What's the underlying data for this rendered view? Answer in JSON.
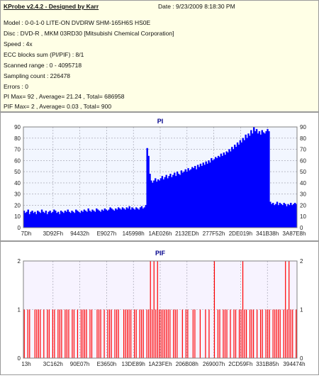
{
  "header": {
    "title": "KProbe v2.4.2 - Designed by Karr",
    "date": "Date : 9/23/2009 8:18:30 PM",
    "lines": [
      "Model : 0-0-1-0 LITE-ON DVDRW SHM-165H6S HS0E",
      "Disc : DVD-R , MKM 03RD30  [Mitsubishi Chemical Corporation]",
      "Speed : 4x",
      "ECC blocks sum (PI/PIF) : 8/1",
      "Scanned range : 0 - 4095718",
      "Sampling count : 226478",
      "Errors : 0",
      "PI Max= 92 , Average= 21.24 , Total= 686958",
      "PIF Max= 2 , Average= 0.03 , Total= 900"
    ]
  },
  "colors": {
    "pi_fill": "#0000ff",
    "pif_bar": "#ff0000",
    "title": "#00008b",
    "infobg": "#ffffe6",
    "plotbg_pi": "#f2f6ff",
    "plotbg_pif": "#f7f3ff"
  },
  "chart_data": [
    {
      "type": "area",
      "title": "PI",
      "xlabel": "",
      "ylabel": "",
      "ylim": [
        0,
        90
      ],
      "yticks": [
        0,
        10,
        20,
        30,
        40,
        50,
        60,
        70,
        80,
        90
      ],
      "xticklabels": [
        "7Dh",
        "3D92Fh",
        "94432h",
        "E9027h",
        "145998h",
        "1AE026h",
        "2132EDh",
        "277F52h",
        "2DE019h",
        "341B38h",
        "3A87E8h"
      ],
      "grid": true,
      "series": [
        {
          "values": [
            15,
            13,
            14,
            16,
            12,
            14,
            15,
            13,
            14,
            12,
            15,
            14,
            13,
            16,
            14,
            13,
            15,
            12,
            14,
            15,
            13,
            14,
            16,
            15,
            13,
            14,
            12,
            15,
            14,
            13,
            15,
            14,
            16,
            14,
            13,
            15,
            14,
            13,
            16,
            15,
            14,
            13,
            15,
            14,
            16,
            15,
            14,
            17,
            15,
            14,
            16,
            15,
            14,
            17,
            16,
            15,
            14,
            16,
            15,
            17,
            16,
            15,
            16,
            18,
            17,
            16,
            15,
            17,
            16,
            18,
            17,
            16,
            18,
            17,
            16,
            18,
            17,
            19,
            16,
            18,
            17,
            16,
            18,
            17,
            16,
            18,
            19,
            17,
            18,
            20,
            71,
            64,
            48,
            42,
            40,
            42,
            44,
            41,
            43,
            42,
            44,
            46,
            43,
            45,
            47,
            44,
            46,
            48,
            45,
            47,
            49,
            46,
            50,
            48,
            47,
            51,
            49,
            50,
            52,
            50,
            53,
            51,
            52,
            54,
            53,
            55,
            52,
            56,
            54,
            57,
            55,
            58,
            56,
            59,
            57,
            60,
            58,
            62,
            60,
            61,
            63,
            62,
            64,
            63,
            66,
            64,
            67,
            65,
            68,
            67,
            70,
            68,
            72,
            70,
            74,
            72,
            76,
            74,
            78,
            76,
            80,
            78,
            83,
            80,
            84,
            82,
            87,
            84,
            90,
            86,
            88,
            84,
            86,
            83,
            87,
            85,
            84,
            86,
            88,
            86,
            23,
            21,
            22,
            20,
            21,
            23,
            20,
            22,
            21,
            20,
            22,
            21,
            19,
            21,
            20,
            22,
            20,
            21,
            22,
            21
          ]
        }
      ]
    },
    {
      "type": "bar",
      "title": "PIF",
      "xlabel": "",
      "ylabel": "",
      "ylim": [
        0,
        2
      ],
      "yticks": [
        0,
        1,
        2
      ],
      "xticklabels": [
        "13h",
        "3C162h",
        "90E07h",
        "E3650h",
        "13DE89h",
        "1A23FEh",
        "206B08h",
        "269007h",
        "2CD59Fh",
        "331B85h",
        "394474h"
      ],
      "grid": true,
      "series": [
        {
          "values": [
            1,
            0,
            1,
            1,
            0,
            0,
            1,
            1,
            1,
            1,
            0,
            1,
            0,
            1,
            1,
            0,
            1,
            1,
            0,
            1,
            1,
            1,
            0,
            1,
            1,
            1,
            0,
            1,
            1,
            0,
            1,
            0,
            1,
            1,
            1,
            1,
            0,
            1,
            1,
            0,
            0,
            1,
            1,
            1,
            0,
            1,
            0,
            1,
            1,
            1,
            0,
            1,
            1,
            1,
            0,
            0,
            1,
            1,
            1,
            1,
            1,
            0,
            1,
            1,
            0,
            1,
            1,
            1,
            0,
            1,
            1,
            2,
            1,
            2,
            1,
            2,
            1,
            1,
            1,
            1,
            1,
            1,
            1,
            0,
            1,
            1,
            1,
            0,
            0,
            1,
            0,
            1,
            1,
            0,
            0,
            1,
            1,
            0,
            0,
            1,
            0,
            0,
            1,
            0,
            1,
            0,
            0,
            2,
            0,
            1,
            1,
            0,
            1,
            1,
            1,
            0,
            1,
            0,
            1,
            1,
            0,
            1,
            1,
            2,
            1,
            1,
            0,
            1,
            1,
            1,
            0,
            1,
            0,
            1,
            1,
            0,
            1,
            1,
            1,
            0,
            1,
            1,
            1,
            1,
            1,
            0,
            1,
            2,
            1,
            2,
            1,
            1,
            0,
            1
          ]
        }
      ]
    }
  ]
}
